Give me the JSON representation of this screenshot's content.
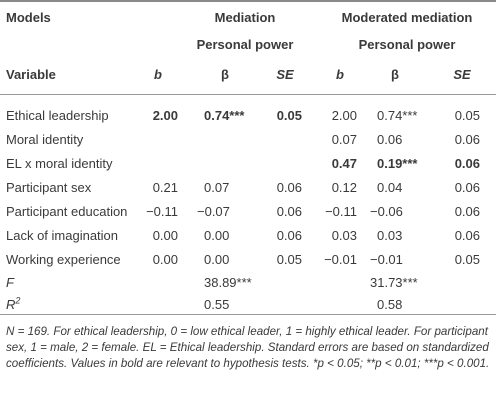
{
  "header": {
    "models": "Models",
    "group1": "Mediation",
    "group1_sub": "Personal power",
    "group2": "Moderated mediation",
    "group2_sub": "Personal power",
    "variable": "Variable",
    "b": "b",
    "beta": "β",
    "se": "SE"
  },
  "rows": [
    {
      "label": "Ethical leadership",
      "m_b": "2.00",
      "m_beta": "0.74***",
      "m_se": "0.05",
      "mm_b": "2.00",
      "mm_beta": "0.74***",
      "mm_se": "0.05"
    },
    {
      "label": "Moral identity",
      "m_b": "",
      "m_beta": "",
      "m_se": "",
      "mm_b": "0.07",
      "mm_beta": "0.06",
      "mm_se": "0.06"
    },
    {
      "label": "EL x moral identity",
      "m_b": "",
      "m_beta": "",
      "m_se": "",
      "mm_b": "0.47",
      "mm_beta": "0.19***",
      "mm_se": "0.06"
    },
    {
      "label": "Participant sex",
      "m_b": "0.21",
      "m_beta": "0.07",
      "m_se": "0.06",
      "mm_b": "0.12",
      "mm_beta": "0.04",
      "mm_se": "0.06"
    },
    {
      "label": "Participant education",
      "m_b": "−0.11",
      "m_beta": "−0.07",
      "m_se": "0.06",
      "mm_b": "−0.11",
      "mm_beta": "−0.06",
      "mm_se": "0.06"
    },
    {
      "label": "Lack of imagination",
      "m_b": "0.00",
      "m_beta": "0.00",
      "m_se": "0.06",
      "mm_b": "0.03",
      "mm_beta": "0.03",
      "mm_se": "0.06"
    },
    {
      "label": "Working experience",
      "m_b": "0.00",
      "m_beta": "0.00",
      "m_se": "0.05",
      "mm_b": "−0.01",
      "mm_beta": "−0.01",
      "mm_se": "0.05"
    }
  ],
  "f_row": {
    "label": "F",
    "m_value": "38.89***",
    "mm_value": "31.73***"
  },
  "r2_row": {
    "label_base": "R",
    "label_sup": "2",
    "m_value": "0.55",
    "mm_value": "0.58"
  },
  "note": "N = 169. For ethical leadership, 0 = low ethical leader, 1 = highly ethical leader. For participant sex, 1 = male, 2 = female. EL = Ethical leadership. Standard errors are based on standardized coefficients. Values in bold are relevant to hypothesis tests. *p < 0.05; **p < 0.01; ***p < 0.001."
}
